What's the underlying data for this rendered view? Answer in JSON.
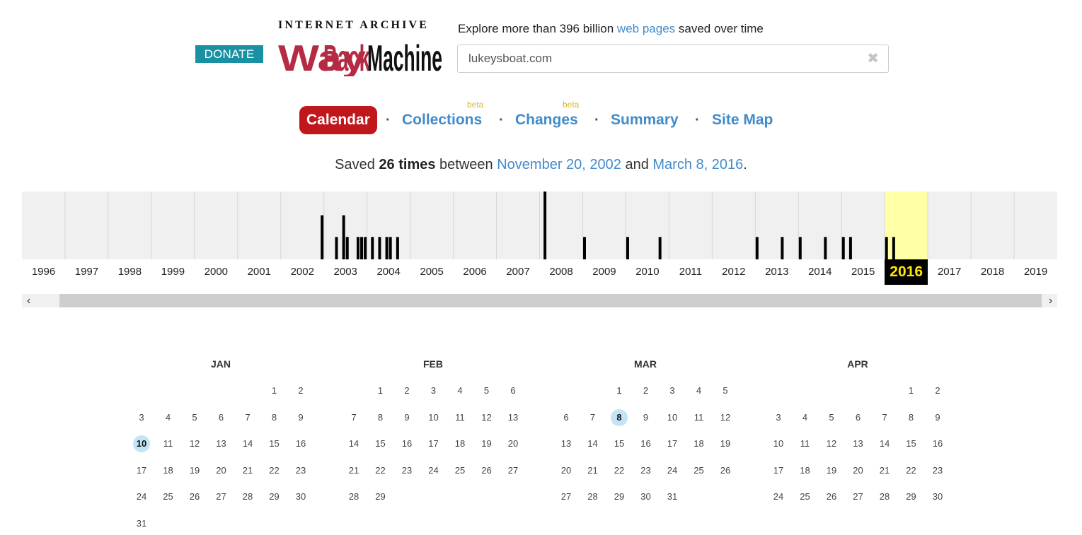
{
  "header": {
    "donate_label": "DONATE",
    "logo_top": "INTERNET ARCHIVE",
    "logo_main": "WayBackMachine",
    "tagline_pre": "Explore more than 396 billion ",
    "tagline_link": "web pages",
    "tagline_post": " saved over time"
  },
  "search": {
    "value": "lukeysboat.com",
    "clear_icon": "close-icon"
  },
  "nav": {
    "calendar": "Calendar",
    "collections": "Collections",
    "changes": "Changes",
    "summary": "Summary",
    "site_map": "Site Map",
    "beta": "beta",
    "separator": "·"
  },
  "saved": {
    "pre": "Saved ",
    "count": "26 times",
    "mid": " between ",
    "start": "November 20, 2002",
    "and": " and ",
    "end": "March 8, 2016",
    "post": "."
  },
  "timeline": {
    "years": [
      "1996",
      "1997",
      "1998",
      "1999",
      "2000",
      "2001",
      "2002",
      "2003",
      "2004",
      "2005",
      "2006",
      "2007",
      "2008",
      "2009",
      "2010",
      "2011",
      "2012",
      "2013",
      "2014",
      "2015",
      "2016",
      "2017",
      "2018",
      "2019"
    ],
    "selected_year": "2016",
    "highlight_color": "#ffffa6",
    "bars": [
      {
        "year": 2002,
        "month": 11,
        "level": 0.65
      },
      {
        "year": 2003,
        "month": 3,
        "level": 0.33
      },
      {
        "year": 2003,
        "month": 5,
        "level": 0.65
      },
      {
        "year": 2003,
        "month": 6,
        "level": 0.33
      },
      {
        "year": 2003,
        "month": 9,
        "level": 0.33
      },
      {
        "year": 2003,
        "month": 10,
        "level": 0.33
      },
      {
        "year": 2003,
        "month": 11,
        "level": 0.33
      },
      {
        "year": 2004,
        "month": 1,
        "level": 0.33
      },
      {
        "year": 2004,
        "month": 3,
        "level": 0.33
      },
      {
        "year": 2004,
        "month": 5,
        "level": 0.33
      },
      {
        "year": 2004,
        "month": 6,
        "level": 0.33
      },
      {
        "year": 2004,
        "month": 8,
        "level": 0.33
      },
      {
        "year": 2008,
        "month": 1,
        "level": 1.0
      },
      {
        "year": 2009,
        "month": 0,
        "level": 0.33
      },
      {
        "year": 2010,
        "month": 0,
        "level": 0.33
      },
      {
        "year": 2010,
        "month": 9,
        "level": 0.33
      },
      {
        "year": 2013,
        "month": 0,
        "level": 0.33
      },
      {
        "year": 2013,
        "month": 7,
        "level": 0.33
      },
      {
        "year": 2014,
        "month": 0,
        "level": 0.33
      },
      {
        "year": 2014,
        "month": 7,
        "level": 0.33
      },
      {
        "year": 2015,
        "month": 0,
        "level": 0.33
      },
      {
        "year": 2015,
        "month": 2,
        "level": 0.33
      },
      {
        "year": 2016,
        "month": 0,
        "level": 0.33
      },
      {
        "year": 2016,
        "month": 2,
        "level": 0.33
      }
    ]
  },
  "calendar": {
    "year": 2016,
    "months": [
      {
        "name": "JAN",
        "days": 31,
        "start_weekday": 5,
        "captures": [
          10
        ]
      },
      {
        "name": "FEB",
        "days": 29,
        "start_weekday": 1,
        "captures": []
      },
      {
        "name": "MAR",
        "days": 31,
        "start_weekday": 2,
        "captures": [
          8
        ]
      },
      {
        "name": "APR",
        "days": 30,
        "start_weekday": 5,
        "captures": []
      }
    ]
  },
  "scrollbar": {
    "left_icon": "chevron-left-icon",
    "right_icon": "chevron-right-icon"
  }
}
